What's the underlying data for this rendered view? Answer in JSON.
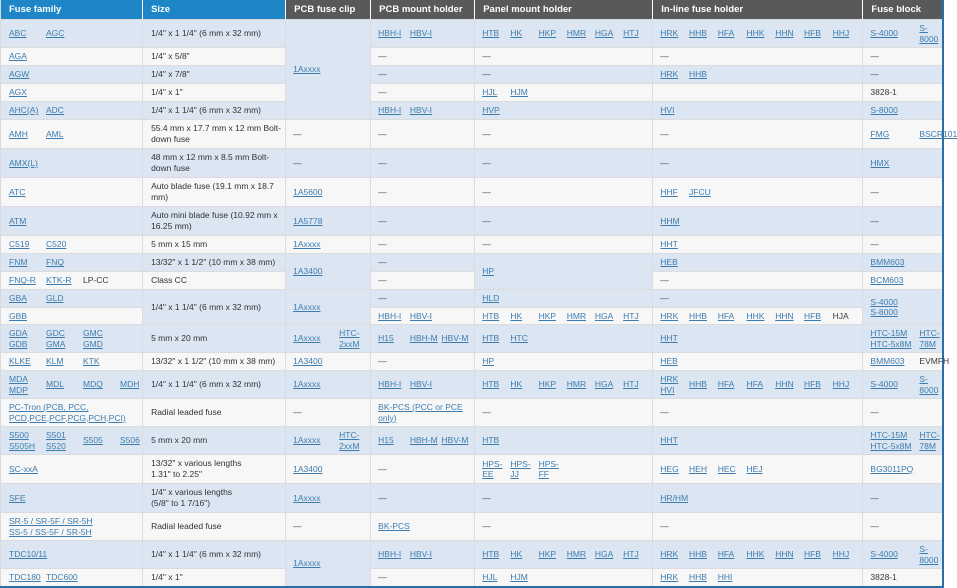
{
  "colors": {
    "header_blue": "#1e86c6",
    "header_gray": "#58595b",
    "row_shade": "#dce6f2",
    "row_light": "#f7f7f8",
    "link": "#3d7cae",
    "accent_border": "#2e6da4"
  },
  "columns": [
    {
      "label": "Fuse family"
    },
    {
      "label": "Size"
    },
    {
      "label": "PCB fuse clip"
    },
    {
      "label": "PCB mount holder"
    },
    {
      "label": "Panel mount holder"
    },
    {
      "label": "In-line fuse holder"
    },
    {
      "label": "Fuse block"
    }
  ],
  "rows": [
    {
      "family": {
        "items": [
          "ABC",
          "AGC"
        ]
      },
      "size": {
        "text": "1/4\" x 1 1/4\" (6 mm x 32 mm)"
      },
      "clip": {
        "rowspan": 5,
        "items": [
          "1Axxxx"
        ]
      },
      "mount": {
        "items": [
          "HBH-I",
          "HBV-I"
        ]
      },
      "panel": {
        "items": [
          "HTB",
          "HK",
          "HKP",
          "HMR",
          "HGA",
          "HTJ"
        ]
      },
      "inline": {
        "items": [
          "HRK",
          "HHB",
          "HFA",
          "HHK",
          "HHN",
          "HFB",
          "HHJ"
        ]
      },
      "block": {
        "items": [
          "S-4000",
          "S-8000"
        ]
      }
    },
    {
      "family": {
        "items": [
          "AGA"
        ]
      },
      "size": {
        "text": "1/4\" x 5/8\""
      },
      "clip": "skip",
      "mount": {
        "items": [
          "—"
        ]
      },
      "panel": {
        "items": [
          "—"
        ]
      },
      "inline": {
        "items": [
          "—"
        ]
      },
      "block": {
        "items": [
          "—"
        ]
      }
    },
    {
      "family": {
        "items": [
          "AGW"
        ]
      },
      "size": {
        "text": "1/4\" x 7/8\""
      },
      "clip": "skip",
      "mount": {
        "items": [
          "—"
        ]
      },
      "panel": {
        "items": [
          "—"
        ]
      },
      "inline": {
        "items": [
          "HRK",
          "HHB"
        ]
      },
      "block": {
        "items": [
          "—"
        ]
      }
    },
    {
      "family": {
        "items": [
          "AGX"
        ]
      },
      "size": {
        "text": "1/4\" x 1\""
      },
      "clip": "skip",
      "mount": {
        "items": [
          "—"
        ]
      },
      "panel": {
        "items": [
          "HJL",
          "HJM"
        ]
      },
      "inline": {
        "items": []
      },
      "block": {
        "items": [
          {
            "t": "3828-1",
            "plain": true
          }
        ]
      }
    },
    {
      "family": {
        "items": [
          "AHC(A)",
          "ADC"
        ]
      },
      "size": {
        "text": "1/4\" x 1 1/4\" (6 mm x 32 mm)"
      },
      "clip": "skip",
      "mount": {
        "items": [
          "HBH-I",
          "HBV-I"
        ]
      },
      "panel": {
        "items": [
          "HVP"
        ]
      },
      "inline": {
        "items": [
          "HVI"
        ]
      },
      "block": {
        "items": [
          "S-8000"
        ]
      }
    },
    {
      "family": {
        "items": [
          "AMH",
          "AML"
        ]
      },
      "size": {
        "text": "55.4 mm x 17.7 mm x 12 mm Bolt-down fuse"
      },
      "clip": {
        "items": [
          "—"
        ]
      },
      "mount": {
        "items": [
          "—"
        ]
      },
      "panel": {
        "items": [
          "—"
        ]
      },
      "inline": {
        "items": [
          "—"
        ]
      },
      "block": {
        "items": [
          "FMG",
          "BSCR101"
        ]
      }
    },
    {
      "family": {
        "items": [
          "AMX(L)"
        ]
      },
      "size": {
        "text": "48 mm x 12 mm x 8.5 mm Bolt-down fuse"
      },
      "clip": {
        "items": [
          "—"
        ]
      },
      "mount": {
        "items": [
          "—"
        ]
      },
      "panel": {
        "items": [
          "—"
        ]
      },
      "inline": {
        "items": [
          "—"
        ]
      },
      "block": {
        "items": [
          "HMX"
        ]
      }
    },
    {
      "family": {
        "items": [
          "ATC"
        ]
      },
      "size": {
        "text": "Auto blade fuse (19.1 mm x 18.7 mm)"
      },
      "clip": {
        "items": [
          "1A5600"
        ]
      },
      "mount": {
        "items": [
          "—"
        ]
      },
      "panel": {
        "items": [
          "—"
        ]
      },
      "inline": {
        "items": [
          "HHF",
          "JFCU"
        ]
      },
      "block": {
        "items": [
          "—"
        ]
      }
    },
    {
      "family": {
        "items": [
          "ATM"
        ]
      },
      "size": {
        "text": "Auto mini blade fuse (10.92 mm x 16.25 mm)"
      },
      "clip": {
        "items": [
          "1A5778"
        ]
      },
      "mount": {
        "items": [
          "—"
        ]
      },
      "panel": {
        "items": [
          "—"
        ]
      },
      "inline": {
        "items": [
          "HHM"
        ]
      },
      "block": {
        "items": [
          "—"
        ]
      }
    },
    {
      "family": {
        "items": [
          "C519",
          "C520"
        ]
      },
      "size": {
        "text": "5 mm x 15 mm"
      },
      "clip": {
        "items": [
          "1Axxxx"
        ]
      },
      "mount": {
        "items": [
          "—"
        ]
      },
      "panel": {
        "items": [
          "—"
        ]
      },
      "inline": {
        "items": [
          "HHT"
        ]
      },
      "block": {
        "items": [
          "—"
        ]
      }
    },
    {
      "family": {
        "items": [
          "FNM",
          "FNQ"
        ]
      },
      "size": {
        "text": "13/32\" x 1 1/2\" (10 mm x 38 mm)"
      },
      "clip": {
        "rowspan": 2,
        "items": [
          "1A3400"
        ]
      },
      "mount": {
        "items": [
          "—"
        ]
      },
      "panel": {
        "rowspan": 2,
        "items": [
          "HP"
        ]
      },
      "inline": {
        "items": [
          "HEB"
        ]
      },
      "block": {
        "items": [
          "BMM603"
        ]
      }
    },
    {
      "family": {
        "items": [
          "FNQ-R",
          "KTK-R",
          {
            "t": "LP-CC",
            "plain": true
          }
        ]
      },
      "size": {
        "text": "Class CC"
      },
      "clip": "skip",
      "mount": {
        "items": [
          "—"
        ]
      },
      "panel": "skip",
      "inline": {
        "items": [
          "—"
        ]
      },
      "block": {
        "items": [
          "BCM603"
        ]
      }
    },
    {
      "family": {
        "items": [
          "GBA",
          "GLD"
        ]
      },
      "size": {
        "rowspan": 2,
        "text": "1/4\" x 1 1/4\" (6 mm x 32 mm)"
      },
      "clip": {
        "rowspan": 2,
        "items": [
          "1Axxxx"
        ]
      },
      "mount": {
        "items": [
          "—"
        ]
      },
      "panel": {
        "items": [
          "HLD"
        ]
      },
      "inline": {
        "items": [
          "—"
        ]
      },
      "block": {
        "rowspan": 2,
        "items": [
          "S-4000\nS-8000"
        ]
      }
    },
    {
      "family": {
        "items": [
          "GBB"
        ]
      },
      "size": "skip",
      "clip": "skip",
      "mount": {
        "items": [
          "HBH-I",
          "HBV-I"
        ]
      },
      "panel": {
        "items": [
          "HTB",
          "HK",
          "HKP",
          "HMR",
          "HGA",
          "HTJ"
        ]
      },
      "inline": {
        "items": [
          "HRK",
          "HHB",
          "HFA",
          "HHK",
          "HHN",
          "HFB",
          {
            "t": "HJA",
            "plain": true
          }
        ]
      },
      "block": "skip"
    },
    {
      "family": {
        "items": [
          "GDA\nGDB",
          "GDC\nGMA",
          "GMC\nGMD"
        ]
      },
      "size": {
        "text": "5 mm x 20 mm"
      },
      "clip": {
        "items": [
          "1Axxxx",
          "HTC-2xxM"
        ]
      },
      "mount": {
        "items": [
          "H15",
          "HBH-M",
          "HBV-M"
        ]
      },
      "panel": {
        "items": [
          "HTB",
          "HTC"
        ]
      },
      "inline": {
        "items": [
          "HHT"
        ]
      },
      "block": {
        "items": [
          "HTC-15M\nHTC-5x8M",
          "HTC-78M"
        ]
      }
    },
    {
      "family": {
        "items": [
          "KLKE",
          "KLM",
          "KTK"
        ]
      },
      "size": {
        "text": "13/32\" x 1 1/2\" (10 mm x 38 mm)"
      },
      "clip": {
        "items": [
          "1A3400"
        ]
      },
      "mount": {
        "items": [
          "—"
        ]
      },
      "panel": {
        "items": [
          "HP"
        ]
      },
      "inline": {
        "items": [
          "HEB"
        ]
      },
      "block": {
        "items": [
          "BMM603",
          {
            "t": "EVMFH",
            "plain": true
          }
        ]
      }
    },
    {
      "family": {
        "items": [
          "MDA\nMDP",
          "MDL",
          "MDQ",
          "MDH"
        ]
      },
      "size": {
        "text": "1/4\" x 1 1/4\" (6 mm x 32 mm)"
      },
      "clip": {
        "items": [
          "1Axxxx"
        ]
      },
      "mount": {
        "items": [
          "HBH-I",
          "HBV-I"
        ]
      },
      "panel": {
        "items": [
          "HTB",
          "HK",
          "HKP",
          "HMR",
          "HGA",
          "HTJ"
        ]
      },
      "inline": {
        "items": [
          "HRK\nHVI",
          "HHB",
          "HFA",
          "HFA",
          "HHN",
          "HFB",
          "HHJ"
        ]
      },
      "block": {
        "items": [
          "S-4000",
          "S-8000"
        ]
      }
    },
    {
      "family": {
        "items": [
          "PC-Tron (PCB, PCC, PCD,PCE,PCF,PCG,PCH,PCI)"
        ]
      },
      "size": {
        "text": "Radial leaded fuse"
      },
      "clip": {
        "items": [
          "—"
        ]
      },
      "mount": {
        "items": [
          {
            "t": "BK-PCS (PCC or PCE only)",
            "wrap": true
          }
        ]
      },
      "panel": {
        "items": [
          "—"
        ]
      },
      "inline": {
        "items": [
          "—"
        ]
      },
      "block": {
        "items": [
          "—"
        ]
      }
    },
    {
      "family": {
        "items": [
          "S500\nS505H",
          "S501\nS520",
          "S505",
          "S506"
        ]
      },
      "size": {
        "text": "5 mm x 20 mm"
      },
      "clip": {
        "items": [
          "1Axxxx",
          "HTC-2xxM"
        ]
      },
      "mount": {
        "items": [
          "H15",
          "HBH-M",
          "HBV-M"
        ]
      },
      "panel": {
        "items": [
          "HTB"
        ]
      },
      "inline": {
        "items": [
          "HHT"
        ]
      },
      "block": {
        "items": [
          "HTC-15M\nHTC-5x8M",
          "HTC-78M"
        ]
      }
    },
    {
      "family": {
        "items": [
          "SC-xxA"
        ]
      },
      "size": {
        "text": "13/32\" x various lengths\n1.31\" to 2.25\""
      },
      "clip": {
        "items": [
          "1A3400"
        ]
      },
      "mount": {
        "items": [
          "—"
        ]
      },
      "panel": {
        "items": [
          "HPS-EE",
          "HPS-JJ",
          "HPS-FF"
        ]
      },
      "inline": {
        "items": [
          "HEG",
          "HEH",
          "HEC",
          "HEJ"
        ]
      },
      "block": {
        "items": [
          "BG3011PQ"
        ]
      }
    },
    {
      "family": {
        "items": [
          "SFE"
        ]
      },
      "size": {
        "text": "1/4\" x various lengths\n(5/8\" to 1 7/16\")"
      },
      "clip": {
        "items": [
          "1Axxxx"
        ]
      },
      "mount": {
        "items": [
          "—"
        ]
      },
      "panel": {
        "items": [
          "—"
        ]
      },
      "inline": {
        "items": [
          "HR/HM"
        ]
      },
      "block": {
        "items": [
          "—"
        ]
      }
    },
    {
      "family": {
        "items": [
          "SR-5 / SR-5F / SR-5H\nSS-5 / SS-5F / SR-5H"
        ]
      },
      "size": {
        "text": "Radial leaded fuse"
      },
      "clip": {
        "items": [
          "—"
        ]
      },
      "mount": {
        "items": [
          "BK-PCS"
        ]
      },
      "panel": {
        "items": [
          "—"
        ]
      },
      "inline": {
        "items": [
          "—"
        ]
      },
      "block": {
        "items": [
          "—"
        ]
      }
    },
    {
      "family": {
        "items": [
          "TDC10/11"
        ]
      },
      "size": {
        "text": "1/4\" x 1 1/4\" (6 mm x 32 mm)"
      },
      "clip": {
        "rowspan": 2,
        "items": [
          "1Axxxx"
        ]
      },
      "mount": {
        "items": [
          "HBH-I",
          "HBV-I"
        ]
      },
      "panel": {
        "items": [
          "HTB",
          "HK",
          "HKP",
          "HMR",
          "HGA",
          "HTJ"
        ]
      },
      "inline": {
        "items": [
          "HRK",
          "HHB",
          "HFA",
          "HHK",
          "HHN",
          "HFB",
          "HHJ"
        ]
      },
      "block": {
        "items": [
          "S-4000",
          "S-8000"
        ]
      }
    },
    {
      "family": {
        "items": [
          "TDC180",
          "TDC600"
        ]
      },
      "size": {
        "text": "1/4\" x 1\""
      },
      "clip": "skip",
      "mount": {
        "items": [
          "—"
        ]
      },
      "panel": {
        "items": [
          "HJL",
          "HJM"
        ]
      },
      "inline": {
        "items": [
          "HRK",
          "HHB",
          "HHI"
        ]
      },
      "block": {
        "items": [
          {
            "t": "3828-1",
            "plain": true
          }
        ]
      }
    }
  ]
}
